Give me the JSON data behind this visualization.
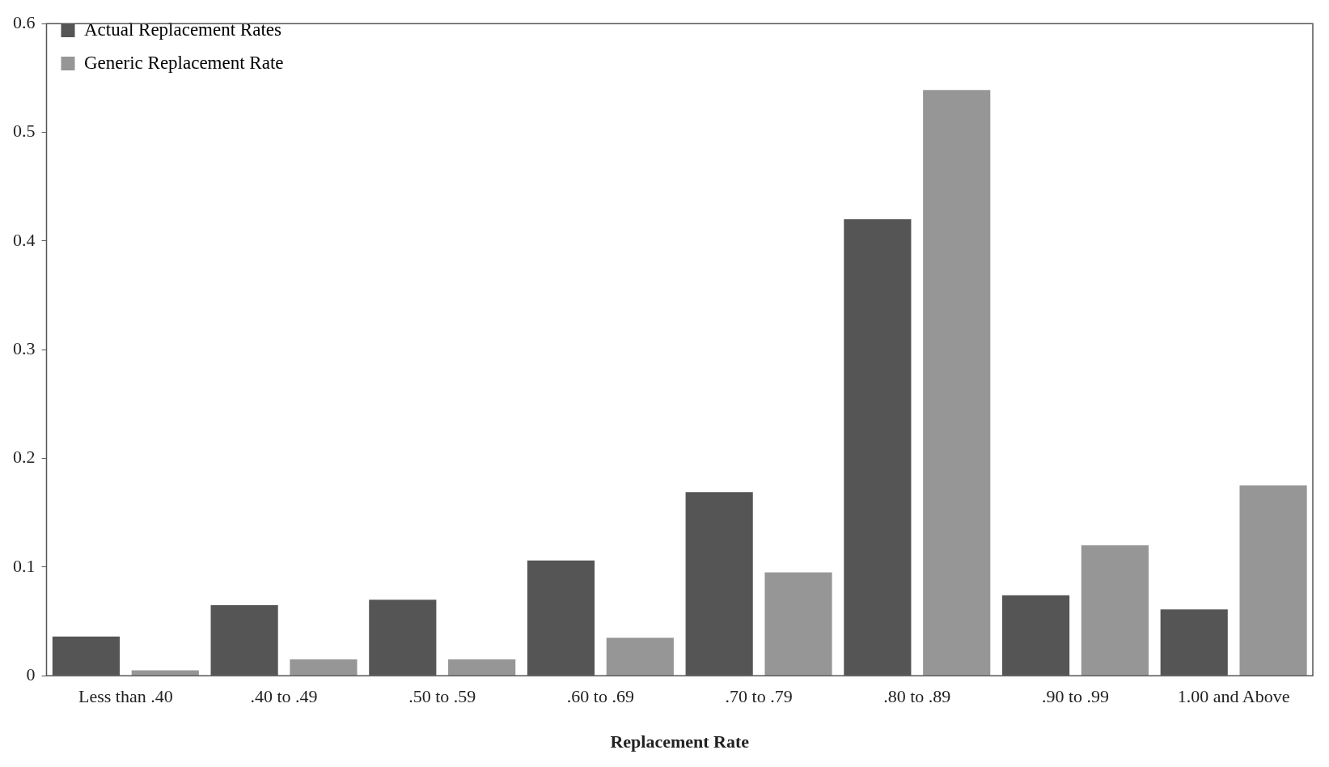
{
  "chart_data": {
    "type": "bar",
    "xlabel": "Replacement Rate",
    "categories": [
      "Less than .40",
      ".40 to .49",
      ".50 to .59",
      ".60 to .69",
      ".70 to .79",
      ".80 to .89",
      ".90 to .99",
      "1.00 and Above"
    ],
    "series": [
      {
        "name": "Actual Replacement Rates",
        "color": "#555555",
        "values": [
          0.036,
          0.065,
          0.07,
          0.106,
          0.169,
          0.42,
          0.074,
          0.061
        ]
      },
      {
        "name": "Generic Replacement Rate",
        "color": "#969696",
        "values": [
          0.005,
          0.015,
          0.015,
          0.035,
          0.095,
          0.539,
          0.12,
          0.175
        ]
      }
    ],
    "ylim": [
      0,
      0.6
    ],
    "yticks": [
      0,
      0.1,
      0.2,
      0.3,
      0.4,
      0.5,
      0.6
    ],
    "grid": false,
    "legend": "top left"
  }
}
